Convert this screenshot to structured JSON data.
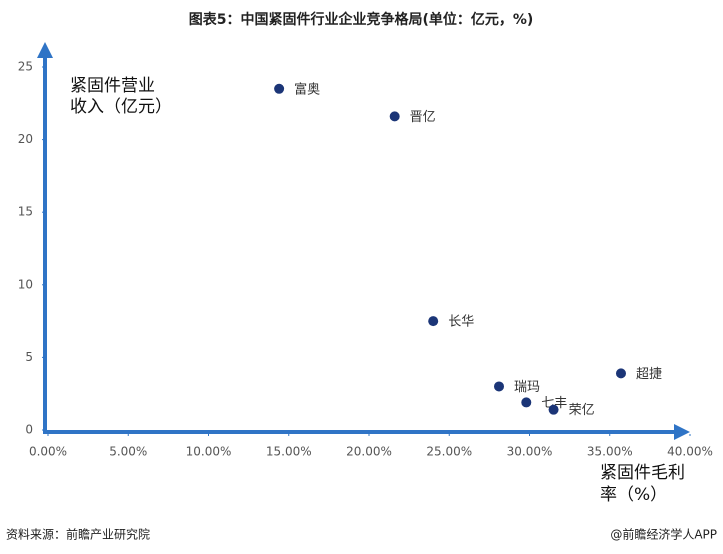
{
  "chart_data": {
    "type": "scatter",
    "title": "图表5：中国紧固件行业企业竞争格局(单位：亿元，%)",
    "ylabel": [
      "紧固件营业",
      "收入（亿元）"
    ],
    "xlabel": [
      "紧固件毛利",
      "率（%）"
    ],
    "series": [
      {
        "color": "#1b3577",
        "labels": [
          "富奥",
          "晋亿",
          "长华",
          "超捷",
          "瑞玛",
          "七丰",
          "荣亿"
        ],
        "x": [
          14.4,
          21.6,
          24.0,
          35.7,
          28.1,
          29.8,
          31.5
        ],
        "values": [
          23.5,
          21.6,
          7.5,
          3.9,
          3.0,
          1.9,
          1.4
        ]
      }
    ],
    "axis_color": "#2f74c6",
    "xlim": [
      0,
      40
    ],
    "xticks": [
      {
        "value": 0,
        "label": "0.00%"
      },
      {
        "value": 5,
        "label": "5.00%"
      },
      {
        "value": 10,
        "label": "10.00%"
      },
      {
        "value": 15,
        "label": "15.00%"
      },
      {
        "value": 20,
        "label": "20.00%"
      },
      {
        "value": 25,
        "label": "25.00%"
      },
      {
        "value": 30,
        "label": "30.00%"
      },
      {
        "value": 35,
        "label": "35.00%"
      },
      {
        "value": 40,
        "label": "40.00%"
      }
    ],
    "ylim": [
      0,
      25
    ],
    "yticks": [
      0,
      5,
      10,
      15,
      20,
      25
    ],
    "source": "资料来源：前瞻产业研究院",
    "credit": "@前瞻经济学人APP"
  }
}
